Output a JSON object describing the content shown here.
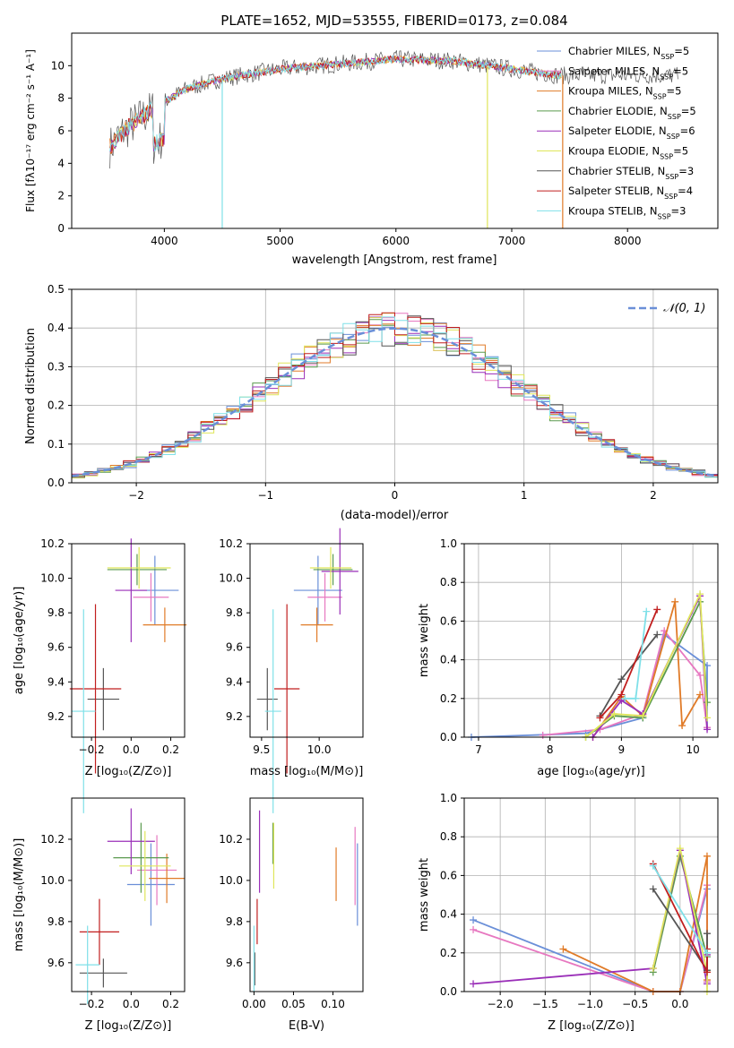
{
  "title": "PLATE=1652, MJD=53555, FIBERID=0173, z=0.084",
  "colors": {
    "series": [
      "#6a8fd8",
      "#e778c0",
      "#e07b28",
      "#5a9a4e",
      "#9a2fb8",
      "#dfe65a",
      "#555555",
      "#c11f1f",
      "#7fe0e8"
    ]
  },
  "chart_data": [
    {
      "id": "spectrum",
      "type": "line",
      "xlabel": "wavelength [Angstrom, rest frame]",
      "ylabel": "Flux [fλ10⁻¹⁷ erg cm⁻² s⁻¹ A⁻¹]",
      "xlim": [
        3200,
        8780
      ],
      "ylim": [
        0,
        12
      ],
      "xticks": [
        4000,
        5000,
        6000,
        7000,
        8000
      ],
      "yticks": [
        0,
        2,
        4,
        6,
        8,
        10
      ],
      "legend_position": "right",
      "series": [
        {
          "name": "Chabrier MILES, N_SSP=5"
        },
        {
          "name": "Salpeter MILES, N_SSP=5"
        },
        {
          "name": "Kroupa MILES, N_SSP=5"
        },
        {
          "name": "Chabrier ELODIE, N_SSP=5"
        },
        {
          "name": "Salpeter ELODIE, N_SSP=6"
        },
        {
          "name": "Kroupa ELODIE, N_SSP=5"
        },
        {
          "name": "Chabrier STELIB, N_SSP=3"
        },
        {
          "name": "Salpeter STELIB, N_SSP=4"
        },
        {
          "name": "Kroupa STELIB, N_SSP=3"
        }
      ],
      "continuum_x": [
        3530,
        3650,
        3800,
        4000,
        4200,
        4500,
        5000,
        5500,
        6000,
        6500,
        7000,
        7400
      ],
      "continuum_y": [
        5.0,
        6.0,
        6.8,
        7.8,
        8.6,
        9.2,
        9.8,
        10.1,
        10.4,
        10.3,
        9.8,
        9.4
      ]
    },
    {
      "id": "residuals",
      "type": "line",
      "xlabel": "(data-model)/error",
      "ylabel": "Normed distribution",
      "xlim": [
        -2.5,
        2.5
      ],
      "ylim": [
        0,
        0.5
      ],
      "xticks": [
        -2,
        -1,
        0,
        1,
        2
      ],
      "yticks": [
        0.0,
        0.1,
        0.2,
        0.3,
        0.4,
        0.5
      ],
      "grid": true,
      "legend_position": "top-right",
      "reference_curve": {
        "name": "𝒩(0, 1)",
        "mean": 0,
        "sigma": 1
      }
    },
    {
      "id": "age_vs_Z",
      "type": "scatter",
      "xlabel": "Z [log₁₀(Z/Z⊙)]",
      "ylabel": "age  [log₁₀(age/yr)]",
      "xlim": [
        -0.3,
        0.27
      ],
      "ylim": [
        9.08,
        10.2
      ],
      "xticks": [
        -0.2,
        0.0,
        0.2
      ],
      "yticks": [
        9.2,
        9.4,
        9.6,
        9.8,
        10.0,
        10.2
      ],
      "points": [
        {
          "x": 0.12,
          "y": 9.93,
          "xerr": 0.12,
          "yerr": 0.2
        },
        {
          "x": 0.1,
          "y": 9.89,
          "xerr": 0.09,
          "yerr": 0.14
        },
        {
          "x": 0.17,
          "y": 9.73,
          "xerr": 0.11,
          "yerr": 0.1
        },
        {
          "x": 0.03,
          "y": 10.05,
          "xerr": 0.15,
          "yerr": 0.09
        },
        {
          "x": 0.0,
          "y": 9.93,
          "xerr": 0.08,
          "yerr": 0.3
        },
        {
          "x": 0.04,
          "y": 10.06,
          "xerr": 0.16,
          "yerr": 0.12
        },
        {
          "x": -0.14,
          "y": 9.3,
          "xerr": 0.08,
          "yerr": 0.18
        },
        {
          "x": -0.18,
          "y": 9.36,
          "xerr": 0.13,
          "yerr": 0.49
        },
        {
          "x": -0.24,
          "y": 9.23,
          "xerr": 0.06,
          "yerr": 0.59
        }
      ]
    },
    {
      "id": "age_vs_mass",
      "type": "scatter",
      "xlabel": "mass [log₁₀(M/M⊙)]",
      "ylabel": "",
      "xlim": [
        9.4,
        10.38
      ],
      "ylim": [
        9.08,
        10.2
      ],
      "xticks": [
        9.5,
        10.0
      ],
      "yticks": [
        9.2,
        9.4,
        9.6,
        9.8,
        10.0,
        10.2
      ],
      "points": [
        {
          "x": 9.99,
          "y": 9.93,
          "xerr": 0.21,
          "yerr": 0.2
        },
        {
          "x": 10.05,
          "y": 9.89,
          "xerr": 0.15,
          "yerr": 0.14
        },
        {
          "x": 9.98,
          "y": 9.73,
          "xerr": 0.14,
          "yerr": 0.1
        },
        {
          "x": 10.12,
          "y": 10.05,
          "xerr": 0.17,
          "yerr": 0.09
        },
        {
          "x": 10.18,
          "y": 10.04,
          "xerr": 0.16,
          "yerr": 0.25
        },
        {
          "x": 10.1,
          "y": 10.06,
          "xerr": 0.18,
          "yerr": 0.12
        },
        {
          "x": 9.55,
          "y": 9.3,
          "xerr": 0.09,
          "yerr": 0.18
        },
        {
          "x": 9.72,
          "y": 9.36,
          "xerr": 0.11,
          "yerr": 0.49
        },
        {
          "x": 9.6,
          "y": 9.23,
          "xerr": 0.07,
          "yerr": 0.59
        }
      ]
    },
    {
      "id": "weight_vs_age",
      "type": "line",
      "xlabel": "age  [log₁₀(age/yr)]",
      "ylabel": "mass weight",
      "xlim": [
        6.8,
        10.35
      ],
      "ylim": [
        0,
        1
      ],
      "xticks": [
        7,
        8,
        9,
        10
      ],
      "yticks": [
        0.0,
        0.2,
        0.4,
        0.6,
        0.8,
        1.0
      ],
      "grid": true,
      "series": [
        {
          "x": [
            6.9,
            8.5,
            9.3,
            9.6,
            10.2,
            10.2
          ],
          "y": [
            0.0,
            0.02,
            0.1,
            0.53,
            0.37,
            0.05
          ]
        },
        {
          "x": [
            7.9,
            8.7,
            9.3,
            9.6,
            10.1,
            10.2
          ],
          "y": [
            0.01,
            0.04,
            0.12,
            0.55,
            0.32,
            0.05
          ]
        },
        {
          "x": [
            8.6,
            9.0,
            9.3,
            9.75,
            9.85,
            10.1
          ],
          "y": [
            0.0,
            0.21,
            0.11,
            0.7,
            0.06,
            0.22
          ]
        },
        {
          "x": [
            8.5,
            8.9,
            9.3,
            10.1,
            10.2
          ],
          "y": [
            0.0,
            0.11,
            0.1,
            0.7,
            0.18
          ]
        },
        {
          "x": [
            8.6,
            9.0,
            9.3,
            10.1,
            10.2
          ],
          "y": [
            0.0,
            0.19,
            0.12,
            0.73,
            0.04
          ]
        },
        {
          "x": [
            8.5,
            8.9,
            9.3,
            10.1,
            10.2
          ],
          "y": [
            0.0,
            0.12,
            0.11,
            0.74,
            0.1
          ]
        },
        {
          "x": [
            8.7,
            9.0,
            9.5
          ],
          "y": [
            0.11,
            0.3,
            0.53
          ]
        },
        {
          "x": [
            8.7,
            9.0,
            9.5
          ],
          "y": [
            0.1,
            0.22,
            0.66
          ]
        },
        {
          "x": [
            9.05,
            9.2,
            9.35
          ],
          "y": [
            0.2,
            0.2,
            0.65
          ]
        }
      ]
    },
    {
      "id": "mass_vs_Z",
      "type": "scatter",
      "xlabel": "Z [log₁₀(Z/Z⊙)]",
      "ylabel": "mass [log₁₀(M/M⊙)]",
      "xlim": [
        -0.3,
        0.27
      ],
      "ylim": [
        9.46,
        10.4
      ],
      "xticks": [
        -0.2,
        0.0,
        0.2
      ],
      "yticks": [
        9.6,
        9.8,
        10.0,
        10.2
      ],
      "points": [
        {
          "x": 0.1,
          "y": 9.98,
          "xerr": 0.12,
          "yerr": 0.2
        },
        {
          "x": 0.13,
          "y": 10.05,
          "xerr": 0.1,
          "yerr": 0.17
        },
        {
          "x": 0.18,
          "y": 10.01,
          "xerr": 0.09,
          "yerr": 0.12
        },
        {
          "x": 0.05,
          "y": 10.11,
          "xerr": 0.14,
          "yerr": 0.17
        },
        {
          "x": 0.0,
          "y": 10.19,
          "xerr": 0.12,
          "yerr": 0.16
        },
        {
          "x": 0.07,
          "y": 10.07,
          "xerr": 0.13,
          "yerr": 0.17
        },
        {
          "x": -0.14,
          "y": 9.55,
          "xerr": 0.12,
          "yerr": 0.07
        },
        {
          "x": -0.16,
          "y": 9.75,
          "xerr": 0.1,
          "yerr": 0.16
        },
        {
          "x": -0.22,
          "y": 9.59,
          "xerr": 0.06,
          "yerr": 0.19
        }
      ]
    },
    {
      "id": "mass_vs_EBV",
      "type": "scatter",
      "xlabel": "E(B-V)",
      "ylabel": "",
      "xlim": [
        -0.005,
        0.138
      ],
      "ylim": [
        9.46,
        10.4
      ],
      "xticks": [
        0.0,
        0.05,
        0.1
      ],
      "yticks": [
        9.6,
        9.8,
        10.0,
        10.2
      ],
      "points": [
        {
          "x": 0.131,
          "y": 9.98,
          "yerr": 0.2
        },
        {
          "x": 0.128,
          "y": 10.07,
          "yerr": 0.19
        },
        {
          "x": 0.104,
          "y": 10.03,
          "yerr": 0.13
        },
        {
          "x": 0.024,
          "y": 10.18,
          "yerr": 0.1
        },
        {
          "x": 0.007,
          "y": 10.14,
          "yerr": 0.2
        },
        {
          "x": 0.025,
          "y": 10.12,
          "yerr": 0.16
        },
        {
          "x": 0.001,
          "y": 9.57,
          "yerr": 0.08
        },
        {
          "x": 0.004,
          "y": 9.8,
          "yerr": 0.11
        },
        {
          "x": 0.0,
          "y": 9.62,
          "yerr": 0.16
        }
      ]
    },
    {
      "id": "weight_vs_Z",
      "type": "line",
      "xlabel": "Z [log₁₀(Z/Z⊙)]",
      "ylabel": "mass weight",
      "xlim": [
        -2.4,
        0.42
      ],
      "ylim": [
        0,
        1
      ],
      "xticks": [
        -2.0,
        -1.5,
        -1.0,
        -0.5,
        0.0
      ],
      "yticks": [
        0.0,
        0.2,
        0.4,
        0.6,
        0.8,
        1.0
      ],
      "grid": true,
      "series": [
        {
          "x": [
            -2.3,
            -0.3,
            0.0,
            0.3,
            0.3
          ],
          "y": [
            0.37,
            0.0,
            0.0,
            0.53,
            0.05
          ]
        },
        {
          "x": [
            -2.3,
            -0.3,
            0.0,
            0.3,
            0.3
          ],
          "y": [
            0.32,
            0.0,
            0.0,
            0.55,
            0.05
          ]
        },
        {
          "x": [
            -1.3,
            -0.3,
            0.0,
            0.3,
            0.3
          ],
          "y": [
            0.22,
            0.0,
            0.0,
            0.7,
            0.06
          ]
        },
        {
          "x": [
            -0.3,
            0.0,
            0.3,
            0.3
          ],
          "y": [
            0.1,
            0.7,
            0.18,
            0.11
          ]
        },
        {
          "x": [
            -2.3,
            -0.3,
            0.0,
            0.3,
            0.3
          ],
          "y": [
            0.04,
            0.12,
            0.73,
            0.04,
            0.19
          ]
        },
        {
          "x": [
            -0.3,
            0.0,
            0.3,
            0.3
          ],
          "y": [
            0.12,
            0.74,
            0.1,
            0.0
          ]
        },
        {
          "x": [
            -0.3,
            0.3,
            0.3
          ],
          "y": [
            0.53,
            0.11,
            0.3
          ]
        },
        {
          "x": [
            -0.3,
            0.3,
            0.3
          ],
          "y": [
            0.66,
            0.1,
            0.22
          ]
        },
        {
          "x": [
            -0.3,
            0.3,
            0.3
          ],
          "y": [
            0.65,
            0.2,
            0.2
          ]
        }
      ]
    }
  ]
}
